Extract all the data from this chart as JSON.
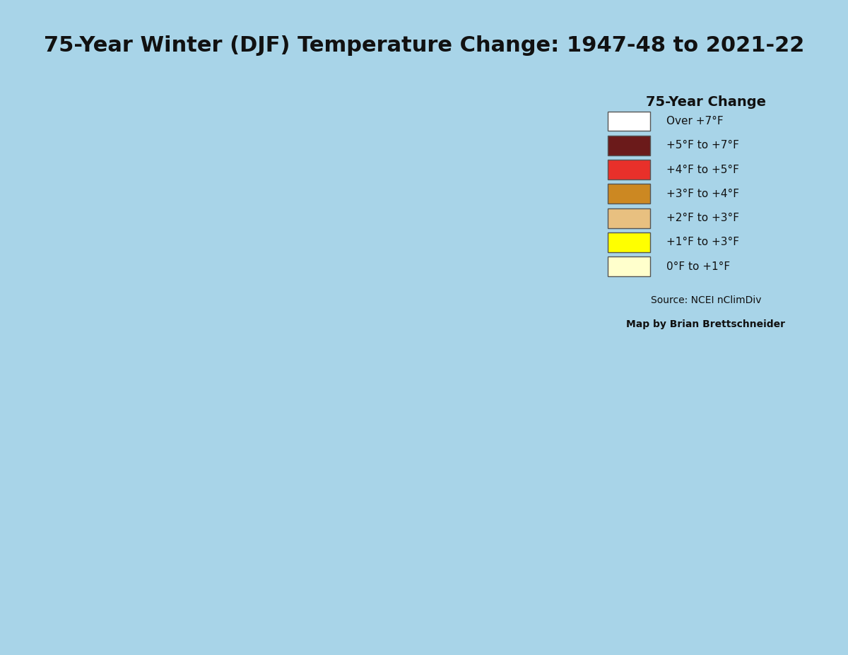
{
  "title": "75-Year Winter (DJF) Temperature Change: 1947-48 to 2021-22",
  "title_fontsize": 22,
  "title_fontweight": "bold",
  "title_box_color": "#d8d8d8",
  "title_box_edge": "#333333",
  "legend_title": "75-Year Change",
  "legend_title_fontsize": 14,
  "legend_title_fontweight": "bold",
  "legend_labels": [
    "Over +7°F",
    "+5°F to +7°F",
    "+4°F to +5°F",
    "+3°F to +4°F",
    "+2°F to +3°F",
    "+1°F to +3°F",
    "0°F to +1°F"
  ],
  "legend_colors": [
    "#ffffff",
    "#6b1a1a",
    "#e8302a",
    "#cc8822",
    "#e8c080",
    "#ffff00",
    "#ffffcc"
  ],
  "source_text": "Source: NCEI nClimDiv\nMap by Brian Brettschneider",
  "background_color": "#a8d4e8",
  "us_fill_default": "#e8c080",
  "alaska_dark_color": "#6b1a1a",
  "alaska_red_color": "#e8302a",
  "alaska_white_color": "#ffffff",
  "border_color": "#333333",
  "fig_bg_color": "#a8d4e8",
  "inset_box_color": "#ffffff",
  "inset_border_color": "#333333"
}
